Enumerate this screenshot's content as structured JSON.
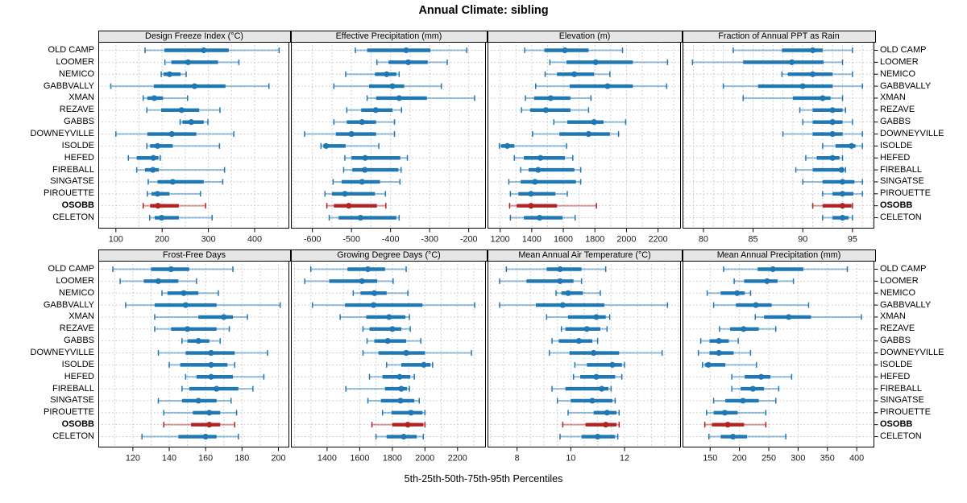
{
  "title": "Annual Climate: sibling",
  "caption": "5th-25th-50th-75th-95th Percentiles",
  "stations": [
    "OLD CAMP",
    "LOOMER",
    "NEMICO",
    "GABBVALLY",
    "XMAN",
    "REZAVE",
    "GABBS",
    "DOWNEYVILLE",
    "ISOLDE",
    "HEFED",
    "FIREBALL",
    "SINGATSE",
    "PIROUETTE",
    "OSOBB",
    "CELETON"
  ],
  "highlight_station": "OSOBB",
  "colors": {
    "series": "#1f77b4",
    "highlight": "#b22222",
    "grid": "#c3c3c3",
    "strip_bg": "#e6e6e6",
    "border": "#000000",
    "text": "#1a1a1a"
  },
  "chart_data": [
    {
      "type": "interval",
      "title": "Design Freeze Index (°C)",
      "percentiles": [
        "5th",
        "25th",
        "50th",
        "75th",
        "95th"
      ],
      "xlim": [
        62,
        475
      ],
      "ticks": [
        100,
        200,
        300,
        400
      ],
      "grid_step": 50,
      "values": [
        [
          163,
          205,
          290,
          344,
          453
        ],
        [
          206,
          220,
          256,
          321,
          366
        ],
        [
          198,
          203,
          216,
          240,
          252
        ],
        [
          89,
          182,
          270,
          337,
          431
        ],
        [
          159,
          168,
          183,
          202,
          255
        ],
        [
          167,
          198,
          242,
          280,
          325
        ],
        [
          239,
          244,
          263,
          290,
          299
        ],
        [
          100,
          168,
          221,
          274,
          355
        ],
        [
          167,
          174,
          190,
          223,
          324
        ],
        [
          127,
          145,
          181,
          192,
          196
        ],
        [
          145,
          163,
          180,
          193,
          335
        ],
        [
          170,
          190,
          223,
          290,
          331
        ],
        [
          168,
          177,
          190,
          216,
          283
        ],
        [
          159,
          174,
          191,
          236,
          294
        ],
        [
          173,
          184,
          199,
          236,
          308
        ]
      ]
    },
    {
      "type": "interval",
      "title": "Effective Precipitation (mm)",
      "percentiles": [
        "5th",
        "25th",
        "50th",
        "75th",
        "95th"
      ],
      "xlim": [
        -655,
        -156
      ],
      "ticks": [
        -600,
        -500,
        -400,
        -300,
        -200
      ],
      "grid_step": 50,
      "values": [
        [
          -490,
          -460,
          -360,
          -298,
          -205
        ],
        [
          -435,
          -405,
          -355,
          -305,
          -255
        ],
        [
          -515,
          -440,
          -410,
          -385,
          -378
        ],
        [
          -545,
          -455,
          -395,
          -365,
          -270
        ],
        [
          -460,
          -437,
          -378,
          -307,
          -185
        ],
        [
          -512,
          -475,
          -438,
          -395,
          -372
        ],
        [
          -545,
          -512,
          -473,
          -437,
          -390
        ],
        [
          -620,
          -540,
          -500,
          -437,
          -390
        ],
        [
          -578,
          -572,
          -565,
          -515,
          -430
        ],
        [
          -517,
          -500,
          -465,
          -375,
          -357
        ],
        [
          -520,
          -498,
          -466,
          -380,
          -373
        ],
        [
          -547,
          -525,
          -473,
          -427,
          -376
        ],
        [
          -568,
          -550,
          -517,
          -440,
          -413
        ],
        [
          -563,
          -545,
          -507,
          -435,
          -412
        ],
        [
          -557,
          -533,
          -477,
          -385,
          -378
        ]
      ]
    },
    {
      "type": "interval",
      "title": "Elevation (m)",
      "percentiles": [
        "5th",
        "25th",
        "50th",
        "75th",
        "95th"
      ],
      "xlim": [
        1120,
        2345
      ],
      "ticks": [
        1200,
        1400,
        1600,
        1800,
        2000,
        2200
      ],
      "grid_step": 100,
      "values": [
        [
          1355,
          1480,
          1610,
          1760,
          1975
        ],
        [
          1515,
          1620,
          1805,
          2040,
          2260
        ],
        [
          1485,
          1560,
          1670,
          1795,
          1895
        ],
        [
          1425,
          1640,
          1880,
          2040,
          2255
        ],
        [
          1360,
          1415,
          1520,
          1645,
          1775
        ],
        [
          1335,
          1390,
          1490,
          1645,
          1760
        ],
        [
          1540,
          1625,
          1795,
          1855,
          1995
        ],
        [
          1405,
          1575,
          1760,
          1895,
          1950
        ],
        [
          1195,
          1205,
          1245,
          1290,
          1620
        ],
        [
          1290,
          1350,
          1455,
          1610,
          1660
        ],
        [
          1330,
          1380,
          1440,
          1670,
          1710
        ],
        [
          1255,
          1330,
          1420,
          1680,
          1710
        ],
        [
          1265,
          1315,
          1395,
          1550,
          1625
        ],
        [
          1260,
          1305,
          1395,
          1560,
          1810
        ],
        [
          1265,
          1350,
          1450,
          1595,
          1675
        ]
      ]
    },
    {
      "type": "interval",
      "title": "Fraction of Annual PPT as Rain",
      "percentiles": [
        "5th",
        "25th",
        "50th",
        "75th",
        "95th"
      ],
      "xlim": [
        77.9,
        97.2
      ],
      "ticks": [
        80,
        85,
        90,
        95
      ],
      "grid_step": 1,
      "values": [
        [
          83.0,
          87.9,
          91.0,
          92.0,
          95.0
        ],
        [
          78.9,
          84.0,
          88.9,
          92.1,
          94.0
        ],
        [
          87.9,
          88.5,
          91.0,
          93.0,
          95.0
        ],
        [
          82.0,
          85.5,
          90.0,
          93.0,
          96.0
        ],
        [
          84.0,
          89.0,
          92.0,
          92.8,
          94.0
        ],
        [
          89.7,
          91.0,
          93.0,
          94.0,
          94.3
        ],
        [
          90.0,
          91.0,
          93.0,
          94.0,
          95.0
        ],
        [
          88.0,
          91.0,
          93.0,
          94.0,
          96.0
        ],
        [
          92.0,
          93.3,
          94.9,
          95.3,
          96.0
        ],
        [
          90.3,
          91.4,
          93.0,
          93.7,
          94.0
        ],
        [
          89.3,
          91.0,
          93.9,
          94.1,
          94.3
        ],
        [
          90.0,
          92.0,
          94.0,
          95.2,
          96.0
        ],
        [
          92.0,
          93.0,
          94.0,
          95.1,
          96.0
        ],
        [
          91.0,
          92.0,
          94.0,
          94.9,
          95.0
        ],
        [
          92.0,
          93.0,
          94.0,
          94.6,
          95.0
        ]
      ]
    },
    {
      "type": "interval",
      "title": "Frost-Free Days",
      "percentiles": [
        "5th",
        "25th",
        "50th",
        "75th",
        "95th"
      ],
      "xlim": [
        101,
        206
      ],
      "ticks": [
        120,
        140,
        160,
        180,
        200
      ],
      "grid_step": 10,
      "values": [
        [
          109,
          130,
          141,
          151,
          175
        ],
        [
          113,
          126,
          134,
          145,
          155
        ],
        [
          136,
          139,
          148,
          156,
          167
        ],
        [
          116,
          132,
          149,
          166,
          201
        ],
        [
          132,
          156,
          170,
          175,
          183
        ],
        [
          132,
          141,
          150,
          166,
          173
        ],
        [
          147,
          150,
          156,
          162,
          168
        ],
        [
          134,
          149,
          163,
          176,
          194
        ],
        [
          140,
          146,
          163,
          172,
          176
        ],
        [
          149,
          155,
          163,
          175,
          192
        ],
        [
          147,
          151,
          166,
          178,
          186
        ],
        [
          134,
          147,
          156,
          166,
          174
        ],
        [
          137,
          153,
          162,
          168,
          177
        ],
        [
          137,
          152,
          162,
          168,
          176
        ],
        [
          125,
          145,
          160,
          166,
          178
        ]
      ]
    },
    {
      "type": "interval",
      "title": "Growing Degree Days (°C)",
      "percentiles": [
        "5th",
        "25th",
        "50th",
        "75th",
        "95th"
      ],
      "xlim": [
        1178,
        2374
      ],
      "ticks": [
        1400,
        1600,
        1800,
        2000,
        2200
      ],
      "grid_step": 100,
      "values": [
        [
          1300,
          1525,
          1650,
          1755,
          1885
        ],
        [
          1263,
          1413,
          1614,
          1707,
          1805
        ],
        [
          1560,
          1605,
          1690,
          1765,
          1895
        ],
        [
          1310,
          1510,
          1685,
          1985,
          2305
        ],
        [
          1480,
          1640,
          1780,
          1880,
          1905
        ],
        [
          1620,
          1660,
          1800,
          1855,
          1910
        ],
        [
          1645,
          1690,
          1772,
          1885,
          1975
        ],
        [
          1620,
          1715,
          1885,
          2000,
          2285
        ],
        [
          1765,
          1855,
          1993,
          2034,
          2047
        ],
        [
          1660,
          1740,
          1845,
          1910,
          1935
        ],
        [
          1515,
          1755,
          1855,
          1890,
          1905
        ],
        [
          1650,
          1730,
          1850,
          1935,
          1965
        ],
        [
          1740,
          1795,
          1915,
          1985,
          2000
        ],
        [
          1675,
          1800,
          1895,
          1990,
          2000
        ],
        [
          1700,
          1765,
          1870,
          1950,
          1990
        ]
      ]
    },
    {
      "type": "interval",
      "title": "Mean Annual Air Temperature (°C)",
      "percentiles": [
        "5th",
        "25th",
        "50th",
        "75th",
        "95th"
      ],
      "xlim": [
        6.9,
        14.1
      ],
      "ticks": [
        8,
        10,
        12
      ],
      "grid_step": 0.5,
      "values": [
        [
          7.6,
          9.1,
          9.6,
          10.4,
          11.3
        ],
        [
          7.35,
          8.35,
          9.6,
          10.1,
          10.4
        ],
        [
          9.45,
          9.65,
          9.9,
          10.45,
          11.1
        ],
        [
          7.35,
          8.7,
          9.7,
          11.25,
          13.6
        ],
        [
          9.1,
          9.9,
          10.95,
          11.3,
          11.45
        ],
        [
          9.65,
          9.8,
          10.6,
          11.1,
          11.35
        ],
        [
          9.3,
          9.55,
          10.3,
          10.8,
          11.0
        ],
        [
          9.2,
          9.95,
          10.85,
          11.8,
          13.4
        ],
        [
          10.15,
          10.6,
          11.55,
          11.9,
          12.0
        ],
        [
          10.1,
          10.35,
          10.95,
          11.65,
          11.9
        ],
        [
          9.3,
          9.8,
          11.15,
          11.4,
          11.5
        ],
        [
          9.5,
          10.0,
          10.8,
          11.55,
          11.65
        ],
        [
          9.9,
          10.85,
          11.35,
          11.7,
          11.8
        ],
        [
          9.7,
          10.55,
          11.3,
          11.7,
          11.8
        ],
        [
          9.6,
          10.4,
          11.0,
          11.65,
          11.75
        ]
      ]
    },
    {
      "type": "interval",
      "title": "Mean Annual Precipitation (mm)",
      "percentiles": [
        "5th",
        "25th",
        "50th",
        "75th",
        "95th"
      ],
      "xlim": [
        103,
        430
      ],
      "ticks": [
        150,
        200,
        250,
        300,
        350,
        400
      ],
      "grid_step": 50,
      "values": [
        [
          173,
          231,
          257,
          309,
          384
        ],
        [
          191,
          208,
          247,
          265,
          292
        ],
        [
          145,
          168,
          196,
          209,
          219
        ],
        [
          156,
          194,
          228,
          255,
          318
        ],
        [
          227,
          242,
          284,
          322,
          408
        ],
        [
          166,
          184,
          207,
          233,
          262
        ],
        [
          134,
          149,
          165,
          182,
          198
        ],
        [
          130,
          149,
          165,
          190,
          219
        ],
        [
          137,
          141,
          147,
          176,
          229
        ],
        [
          187,
          209,
          237,
          253,
          289
        ],
        [
          187,
          202,
          223,
          242,
          267
        ],
        [
          156,
          176,
          206,
          233,
          262
        ],
        [
          144,
          156,
          175,
          197,
          245
        ],
        [
          141,
          153,
          180,
          208,
          245
        ],
        [
          148,
          168,
          189,
          213,
          279
        ]
      ]
    }
  ]
}
